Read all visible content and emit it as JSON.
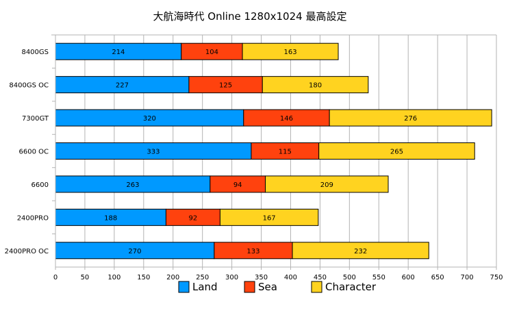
{
  "chart_data": {
    "type": "bar",
    "orientation": "horizontal",
    "stacked": true,
    "title": "大航海時代 Online 1280x1024  最高設定",
    "categories": [
      "8400GS",
      "8400GS OC",
      "7300GT",
      "6600 OC",
      "6600",
      "2400PRO",
      "2400PRO OC"
    ],
    "series": [
      {
        "name": "Land",
        "color": "#0099ff",
        "values": [
          214,
          227,
          320,
          333,
          263,
          188,
          270
        ]
      },
      {
        "name": "Sea",
        "color": "#ff420e",
        "values": [
          104,
          125,
          146,
          115,
          94,
          92,
          133
        ]
      },
      {
        "name": "Character",
        "color": "#ffd320",
        "values": [
          163,
          180,
          276,
          265,
          209,
          167,
          232
        ]
      }
    ],
    "xlim": [
      0,
      750
    ],
    "xticks": [
      "0",
      "50",
      "100",
      "150",
      "200",
      "250",
      "300",
      "350",
      "400",
      "450",
      "500",
      "550",
      "600",
      "650",
      "700",
      "750"
    ],
    "grid": true,
    "legend": "bottom"
  }
}
